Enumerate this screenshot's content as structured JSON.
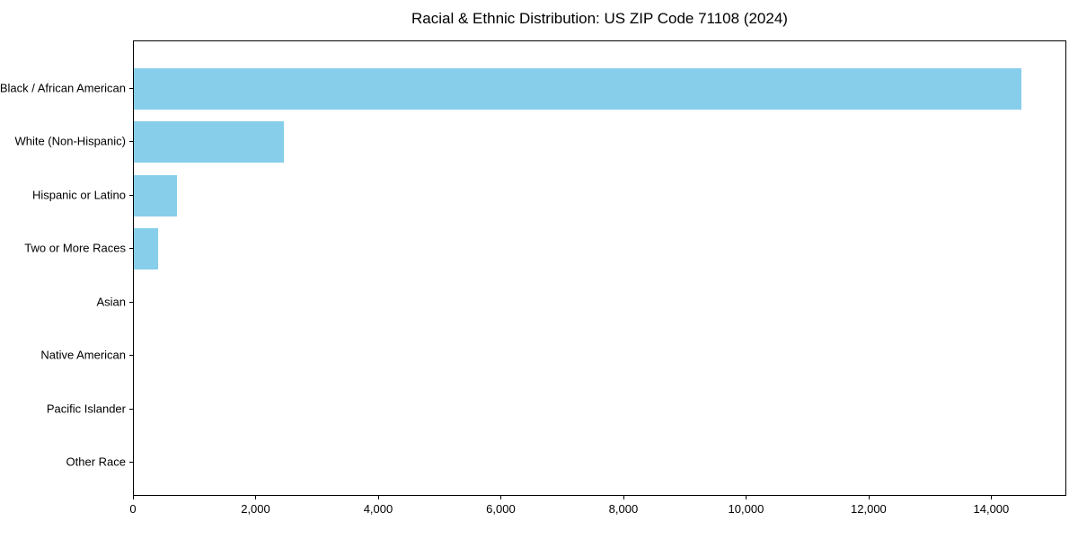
{
  "title": "Racial & Ethnic Distribution: US ZIP Code 71108 (2024)",
  "colors": {
    "bar": "#87CEEB",
    "axis": "#000000",
    "background": "#FFFFFF",
    "text": "#000000"
  },
  "chart_data": {
    "type": "bar",
    "orientation": "horizontal",
    "title": "Racial & Ethnic Distribution: US ZIP Code 71108 (2024)",
    "categories": [
      "Black / African American",
      "White (Non-Hispanic)",
      "Hispanic or Latino",
      "Two or More Races",
      "Asian",
      "Native American",
      "Pacific Islander",
      "Other Race"
    ],
    "values": [
      14500,
      2450,
      700,
      400,
      0,
      0,
      0,
      0
    ],
    "xlabel": "",
    "ylabel": "",
    "xlim": [
      0,
      15225
    ],
    "xticks": [
      0,
      2000,
      4000,
      6000,
      8000,
      10000,
      12000,
      14000
    ],
    "xtick_labels": [
      "0",
      "2,000",
      "4,000",
      "6,000",
      "8,000",
      "10,000",
      "12,000",
      "14,000"
    ],
    "bar_color": "#87CEEB",
    "grid": false,
    "legend": null
  }
}
